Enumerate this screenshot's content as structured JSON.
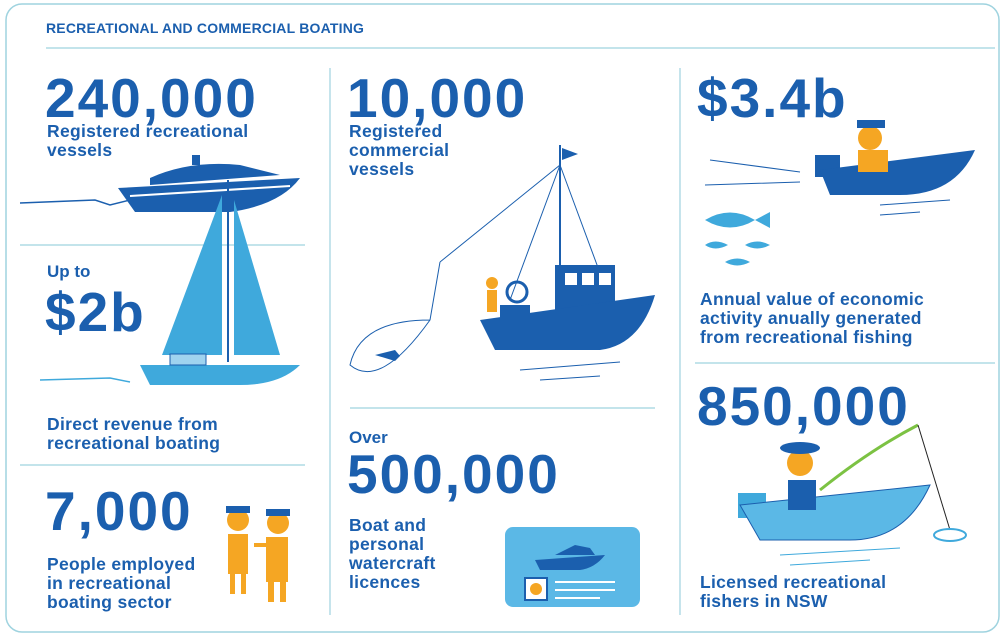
{
  "header": {
    "title": "RECREATIONAL AND COMMERCIAL BOATING"
  },
  "sections": [
    {
      "value": "240,000",
      "description": [
        "Registered recreational",
        "vessels"
      ]
    },
    {
      "prefix": "Up to",
      "value": "$2b",
      "description": [
        "Direct revenue from",
        "recreational boating"
      ]
    },
    {
      "value": "7,000",
      "description": [
        "People employed",
        "in recreational",
        "boating sector"
      ]
    },
    {
      "value": "10,000",
      "description": [
        "Registered",
        "commercial",
        "vessels"
      ]
    },
    {
      "prefix": "Over",
      "value": "500,000",
      "description": [
        "Boat and",
        "personal",
        "watercraft",
        "licences"
      ]
    },
    {
      "value": "$3.4b",
      "description": [
        "Annual value of economic",
        "activity anually generated",
        "from recreational fishing"
      ]
    },
    {
      "value": "850,000",
      "description": [
        "Licensed recreational",
        "fishers in NSW"
      ]
    }
  ]
}
